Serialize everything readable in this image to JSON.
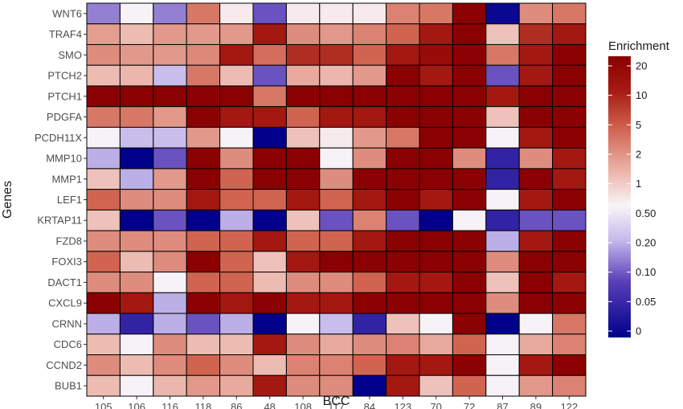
{
  "chart_data": {
    "type": "heatmap",
    "xlabel": "BCC",
    "ylabel": "Genes",
    "x_categories": [
      "105",
      "106",
      "116",
      "118",
      "86",
      "48",
      "108",
      "117",
      "84",
      "123",
      "70",
      "72",
      "87",
      "89",
      "122"
    ],
    "y_categories": [
      "WNT6",
      "TRAF4",
      "SMO",
      "PTCH2",
      "PTCH1",
      "PDGFA",
      "PCDH11X",
      "MMP10",
      "MMP1",
      "LEF1",
      "KRTAP11",
      "FZD8",
      "FOXI3",
      "DACT1",
      "CXCL9",
      "CRNN",
      "CDC6",
      "CCND2",
      "BUB1"
    ],
    "value_scale_note": "values are enrichment read from the color legend",
    "values": [
      [
        0.15,
        0.6,
        0.15,
        3,
        0.7,
        0.1,
        0.7,
        0.7,
        0.7,
        2.5,
        3,
        20,
        0.01,
        2,
        3
      ],
      [
        1.7,
        1.2,
        1.8,
        1.8,
        1.8,
        10,
        2,
        1.8,
        2.5,
        4,
        10,
        20,
        1.1,
        8,
        10
      ],
      [
        2,
        1.8,
        1.8,
        2.2,
        10,
        3.5,
        8,
        8,
        4,
        10,
        15,
        20,
        3,
        10,
        20
      ],
      [
        1.2,
        1.3,
        0.25,
        3,
        1.2,
        0.1,
        1.5,
        1.3,
        1.8,
        20,
        10,
        20,
        0.1,
        10,
        20
      ],
      [
        20,
        20,
        20,
        20,
        20,
        3,
        20,
        20,
        20,
        20,
        20,
        20,
        10,
        20,
        20
      ],
      [
        3,
        3,
        1.8,
        20,
        10,
        10,
        4,
        10,
        10,
        20,
        20,
        20,
        1.1,
        20,
        20
      ],
      [
        0.6,
        0.25,
        0.25,
        1.8,
        0.6,
        0,
        1.1,
        0.7,
        1.8,
        3,
        20,
        20,
        0.6,
        10,
        20
      ],
      [
        0.2,
        0,
        0.1,
        20,
        2,
        20,
        20,
        0.6,
        2,
        20,
        20,
        2,
        0.05,
        2,
        10
      ],
      [
        1.1,
        0.2,
        1.8,
        20,
        4,
        20,
        20,
        2,
        20,
        20,
        20,
        20,
        0.05,
        20,
        10
      ],
      [
        4,
        2,
        2,
        10,
        4,
        4,
        10,
        4,
        10,
        20,
        10,
        20,
        0.6,
        10,
        20
      ],
      [
        1.1,
        0,
        0.1,
        0,
        0.2,
        0,
        1.1,
        0.1,
        2.5,
        0.1,
        0,
        0.6,
        0.05,
        0.1,
        0.1
      ],
      [
        2,
        2,
        2,
        4,
        4,
        10,
        4,
        4,
        10,
        20,
        20,
        20,
        0.2,
        10,
        20
      ],
      [
        4,
        1.2,
        2,
        20,
        4,
        1.1,
        10,
        20,
        20,
        20,
        20,
        20,
        2,
        20,
        20
      ],
      [
        2,
        2,
        0.6,
        4,
        4,
        1.2,
        2,
        2,
        4,
        10,
        10,
        20,
        1.1,
        20,
        10
      ],
      [
        20,
        10,
        0.2,
        20,
        10,
        20,
        10,
        10,
        20,
        20,
        20,
        20,
        2,
        20,
        20
      ],
      [
        0.2,
        0.05,
        0.2,
        0.1,
        0.2,
        0,
        0.6,
        0.25,
        0.05,
        1.1,
        0.6,
        20,
        0,
        0.6,
        3
      ],
      [
        1.2,
        0.6,
        2,
        1.2,
        1.2,
        10,
        2,
        1.5,
        2,
        2.5,
        1.5,
        4,
        0.6,
        1.5,
        2.5
      ],
      [
        2,
        1.2,
        2,
        4,
        2,
        1.2,
        2.5,
        2.5,
        4,
        10,
        10,
        20,
        0.6,
        10,
        20
      ],
      [
        1.2,
        0.6,
        1.3,
        1.8,
        1.5,
        10,
        2,
        2,
        0,
        10,
        1.1,
        4,
        0.6,
        1.8,
        2.5
      ]
    ]
  },
  "legend": {
    "title": "Enrichment",
    "tick_labels": [
      "20",
      "10",
      "5",
      "2",
      "1",
      "0.50",
      "0.20",
      "0.10",
      "0.05",
      "0"
    ],
    "tick_values": [
      20,
      10,
      5,
      2,
      1,
      0.5,
      0.2,
      0.1,
      0.05,
      0
    ],
    "colors": {
      "low": "#00008b",
      "mid": "#f8f4f8",
      "high": "#8b0000",
      "low_mid": "#a18ed6",
      "high_mid": "#d6705f"
    }
  }
}
